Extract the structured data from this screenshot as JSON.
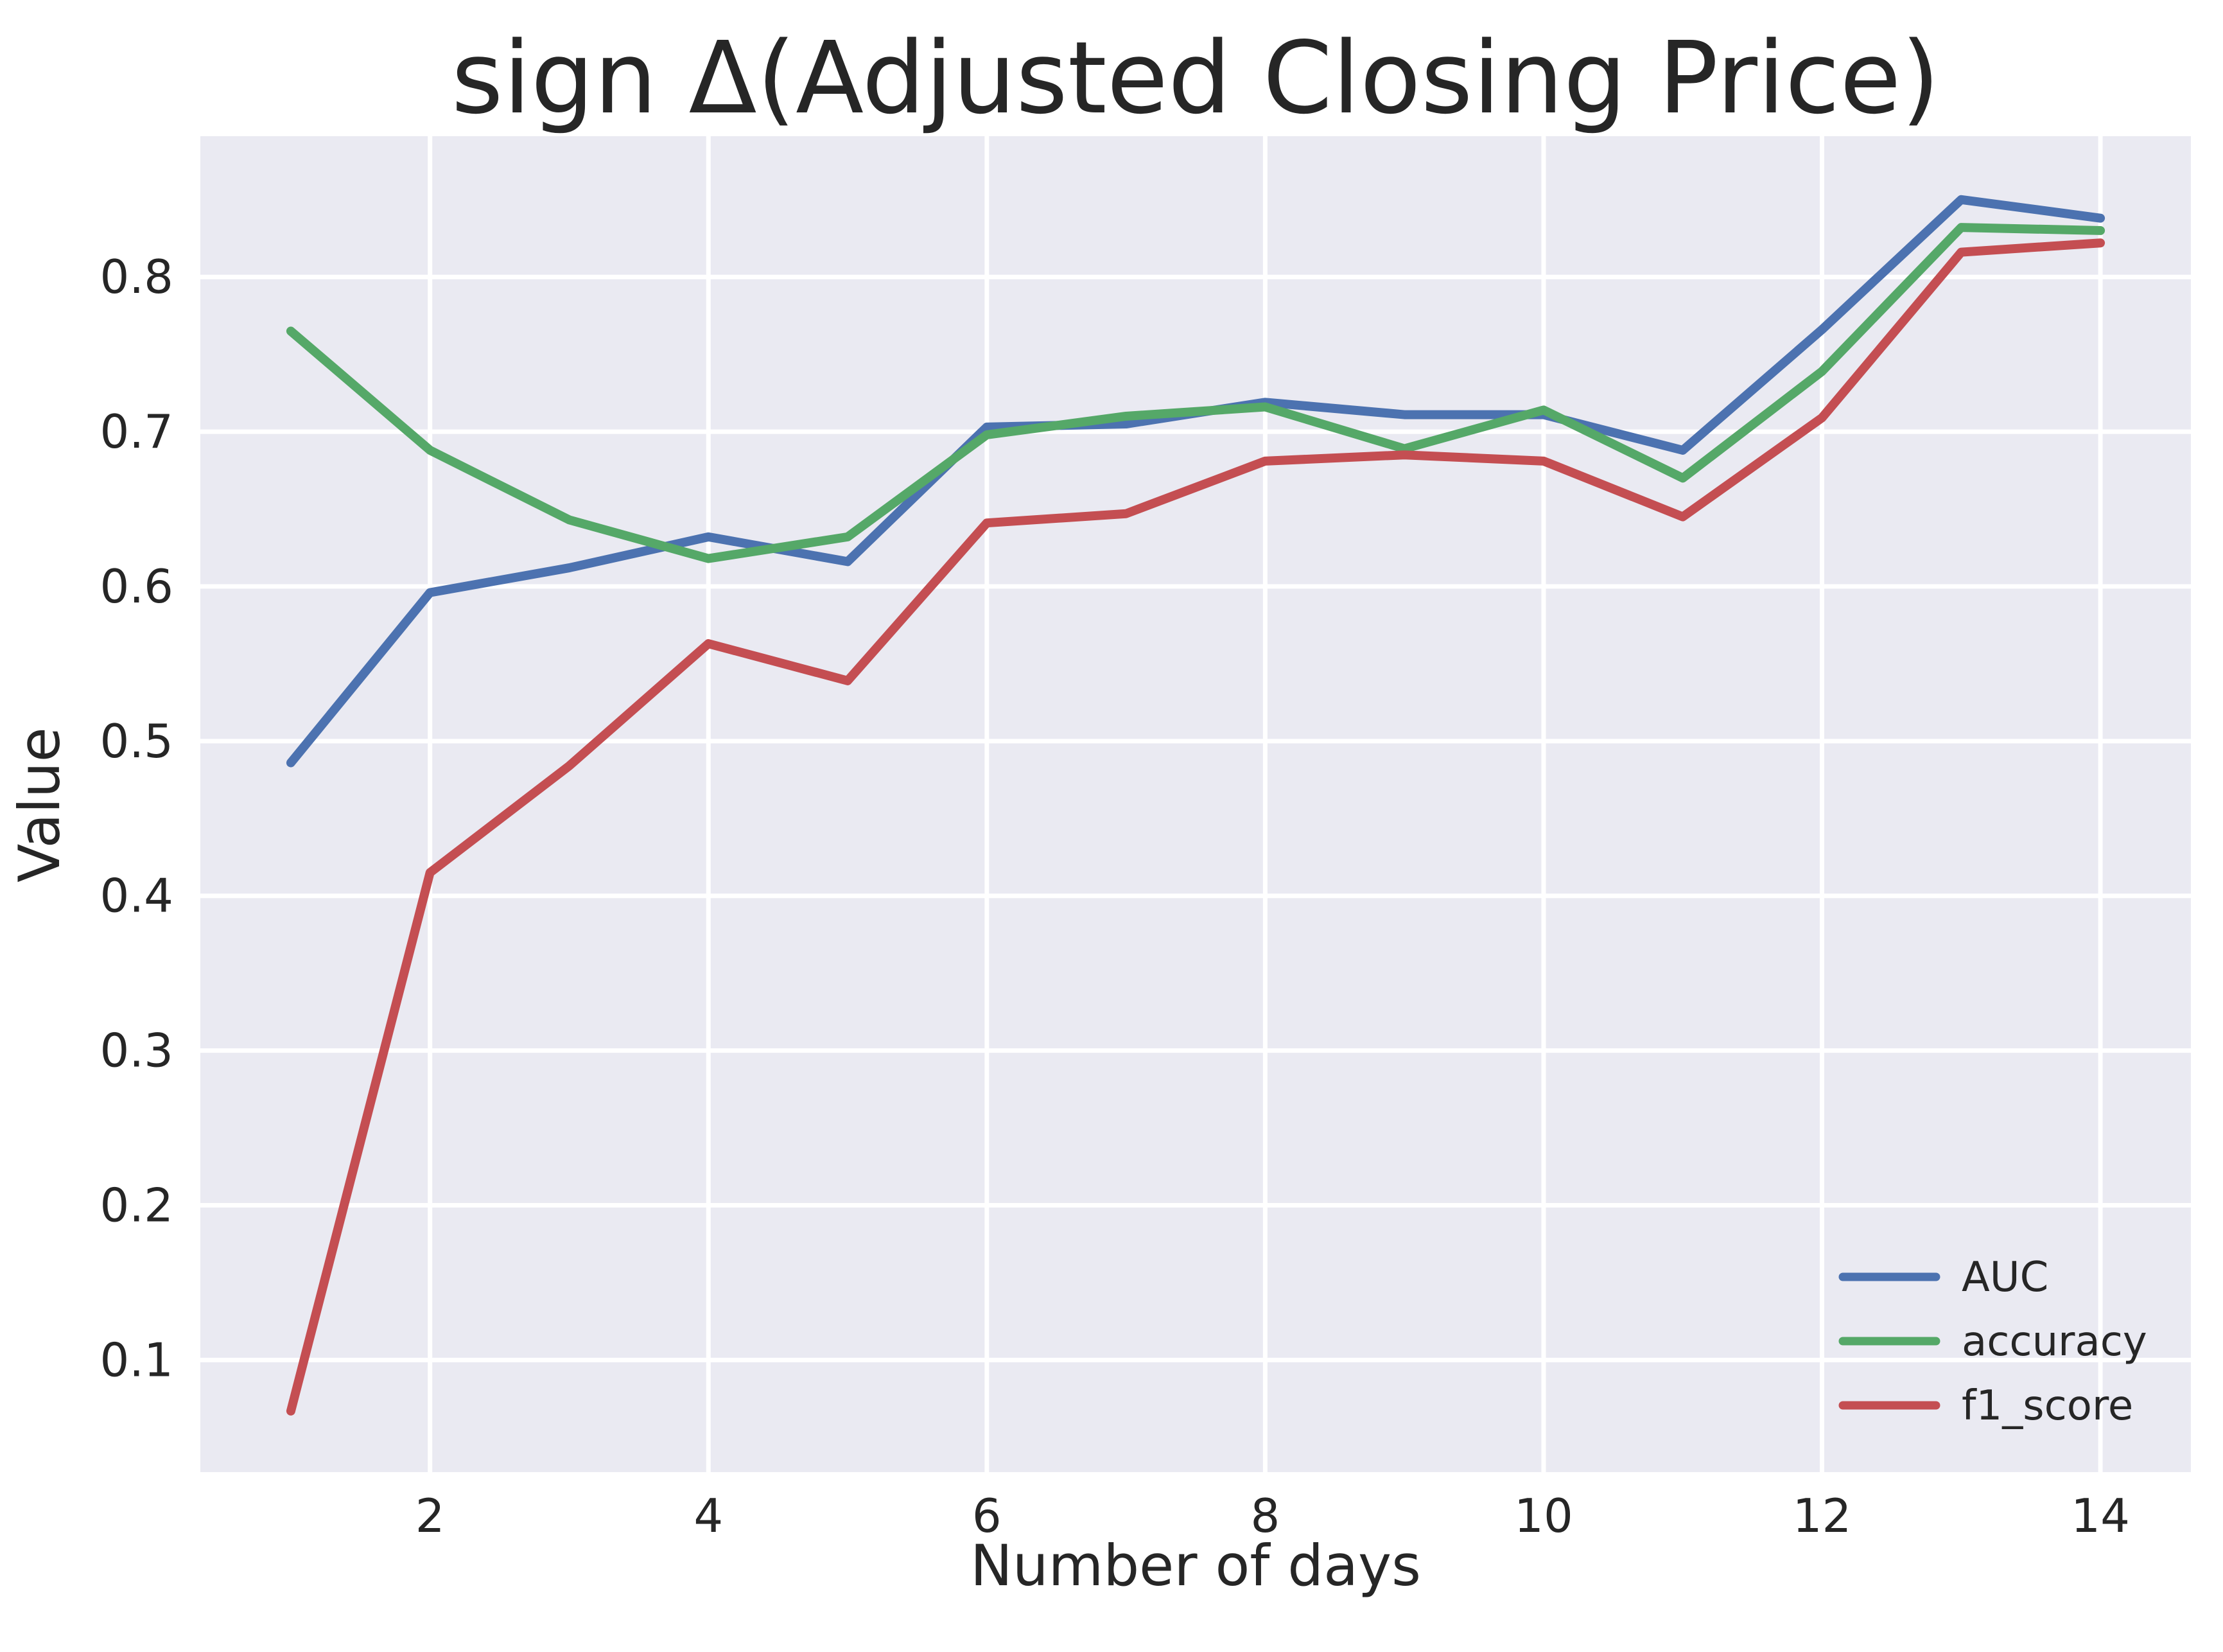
{
  "title": "sign Δ(Adjusted Closing Price)",
  "chart_data": {
    "type": "line",
    "title": "sign Δ(Adjusted Closing Price)",
    "xlabel": "Number of days",
    "ylabel": "Value",
    "x": [
      1,
      2,
      3,
      4,
      5,
      6,
      7,
      8,
      9,
      10,
      11,
      12,
      13,
      14
    ],
    "series": [
      {
        "name": "AUC",
        "color": "#4C72B0",
        "values": [
          0.486,
          0.596,
          0.612,
          0.632,
          0.616,
          0.703,
          0.705,
          0.719,
          0.711,
          0.711,
          0.688,
          0.766,
          0.85,
          0.838
        ]
      },
      {
        "name": "accuracy",
        "color": "#55A868",
        "values": [
          0.765,
          0.688,
          0.643,
          0.618,
          0.632,
          0.698,
          0.71,
          0.716,
          0.689,
          0.714,
          0.67,
          0.739,
          0.832,
          0.83
        ]
      },
      {
        "name": "f1_score",
        "color": "#C44E52",
        "values": [
          0.067,
          0.415,
          0.484,
          0.563,
          0.539,
          0.641,
          0.647,
          0.681,
          0.685,
          0.681,
          0.645,
          0.709,
          0.816,
          0.822
        ]
      }
    ],
    "xticks": [
      {
        "v": 2,
        "label": "2"
      },
      {
        "v": 4,
        "label": "4"
      },
      {
        "v": 6,
        "label": "6"
      },
      {
        "v": 8,
        "label": "8"
      },
      {
        "v": 10,
        "label": "10"
      },
      {
        "v": 12,
        "label": "12"
      },
      {
        "v": 14,
        "label": "14"
      }
    ],
    "yticks": [
      {
        "v": 0.1,
        "label": "0.1"
      },
      {
        "v": 0.2,
        "label": "0.2"
      },
      {
        "v": 0.3,
        "label": "0.3"
      },
      {
        "v": 0.4,
        "label": "0.4"
      },
      {
        "v": 0.5,
        "label": "0.5"
      },
      {
        "v": 0.6,
        "label": "0.6"
      },
      {
        "v": 0.7,
        "label": "0.7"
      },
      {
        "v": 0.8,
        "label": "0.8"
      }
    ],
    "xlim": [
      0.35,
      14.65
    ],
    "ylim": [
      0.0275,
      0.891
    ],
    "grid": true,
    "legend_position": "lower right",
    "legend": [
      "AUC",
      "accuracy",
      "f1_score"
    ],
    "plot_background": "#EAEAF2",
    "grid_color": "#FFFFFF",
    "text_color": "#262626"
  }
}
